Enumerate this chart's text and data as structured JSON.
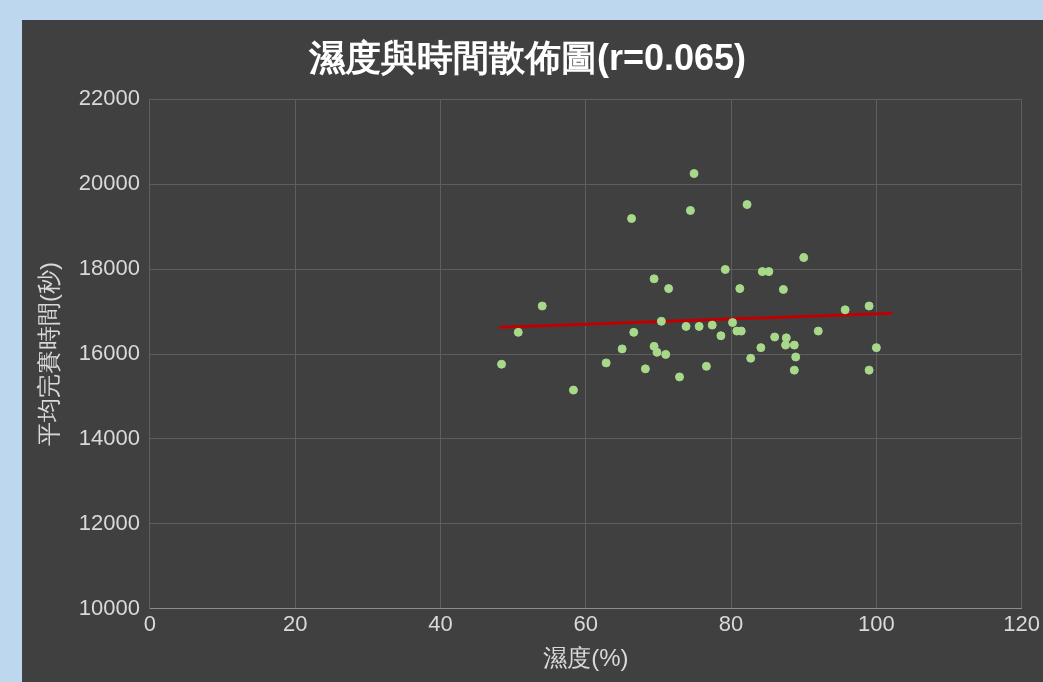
{
  "chart_data": {
    "type": "scatter",
    "title": "濕度與時間散佈圖(r=0.065)",
    "xlabel": "濕度(%)",
    "ylabel": "平均完賽時間(秒)",
    "xlim": [
      0,
      120
    ],
    "xticks": [
      0,
      20,
      40,
      60,
      80,
      100,
      120
    ],
    "ylim": [
      10000,
      22000
    ],
    "yticks": [
      10000,
      12000,
      14000,
      16000,
      18000,
      20000,
      22000
    ],
    "grid": true,
    "legend": false,
    "marker": "circle",
    "series": [
      {
        "color": "#a8d88a",
        "x": [
          48.4,
          50.7,
          54.0,
          58.3,
          62.8,
          65.0,
          66.3,
          66.6,
          68.2,
          69.4,
          69.4,
          69.8,
          70.4,
          71.0,
          71.4,
          72.9,
          73.8,
          74.4,
          74.9,
          75.6,
          76.6,
          77.4,
          78.6,
          79.2,
          80.2,
          80.8,
          81.4,
          81.2,
          82.2,
          82.7,
          84.1,
          84.3,
          85.2,
          86.0,
          87.2,
          87.5,
          87.6,
          88.7,
          88.9,
          88.7,
          90.0,
          92.0,
          95.7,
          99.0,
          100.0,
          99.0
        ],
        "values": [
          15760,
          16510,
          17130,
          15150,
          15790,
          16120,
          19190,
          16510,
          15650,
          17770,
          16180,
          16040,
          16770,
          15990,
          17540,
          15460,
          16650,
          19380,
          20250,
          16650,
          15710,
          16680,
          16430,
          17990,
          16740,
          16540,
          16540,
          17540,
          19520,
          15900,
          16150,
          17940,
          17940,
          16400,
          17520,
          16210,
          16380,
          16210,
          15930,
          15620,
          18270,
          16540,
          17040,
          17130,
          16150,
          15620
        ]
      },
      {
        "type": "line",
        "color": "#c00000",
        "line_style": "solid",
        "marker": "none",
        "x": [
          48.1,
          102.2
        ],
        "values": [
          16630,
          16960
        ]
      }
    ]
  }
}
